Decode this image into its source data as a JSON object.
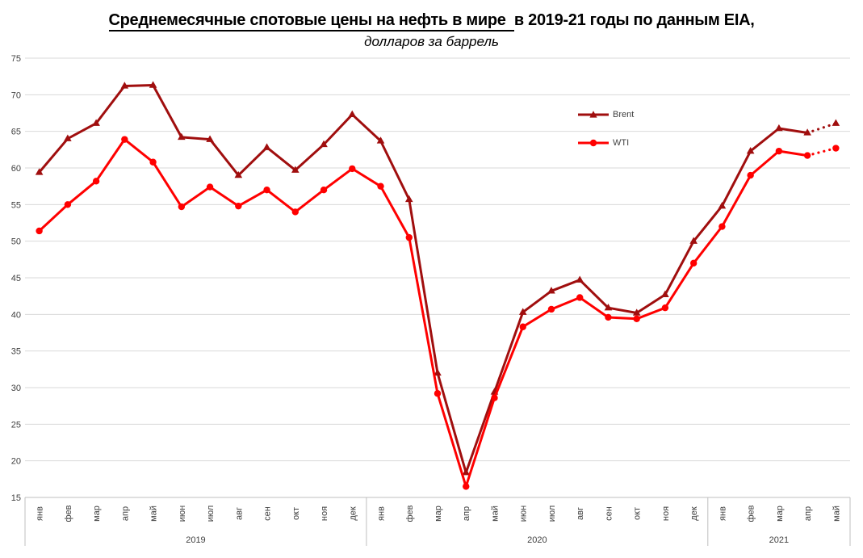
{
  "title": {
    "line1_underlined": "Среднемесячные спотовые цены на нефть в мире ",
    "line1_rest": "в 2019-21 годы по данным EIA,",
    "line2": "долларов за баррель"
  },
  "legend": {
    "items": [
      {
        "label": "Brent",
        "color": "#A00E0E",
        "marker": "triangle"
      },
      {
        "label": "WTI",
        "color": "#FF0000",
        "marker": "circle"
      }
    ]
  },
  "chart_data": {
    "type": "line",
    "title": "Среднемесячные спотовые цены на нефть в мире в 2019-21 годы по данным EIA",
    "subtitle": "долларов за баррель",
    "xlabel": "",
    "ylabel": "",
    "ylim": [
      15,
      75
    ],
    "yticks": [
      15,
      20,
      25,
      30,
      35,
      40,
      45,
      50,
      55,
      60,
      65,
      70,
      75
    ],
    "grid": "horizontal-only",
    "gridline_color": "#D9D9D9",
    "axis_line_color": "#BFBFBF",
    "axis_text_color": "#404040",
    "legend_position": "inside-top-right",
    "month_labels": [
      "янв",
      "фев",
      "мар",
      "апр",
      "май",
      "июн",
      "июл",
      "авг",
      "сен",
      "окт",
      "ноя",
      "дек"
    ],
    "x_groups": [
      {
        "year": "2019",
        "month_count": 12
      },
      {
        "year": "2020",
        "month_count": 12
      },
      {
        "year": "2021",
        "month_count": 5
      }
    ],
    "note": "last segment (апр-май 2021) is dotted forecast",
    "series": [
      {
        "name": "Brent",
        "color": "#A00E0E",
        "marker": "triangle",
        "dotted_last_segment": true,
        "values": [
          59.4,
          64.0,
          66.1,
          71.2,
          71.3,
          64.2,
          63.9,
          59.0,
          62.8,
          59.7,
          63.2,
          67.3,
          63.7,
          55.7,
          32.0,
          18.4,
          29.4,
          40.3,
          43.2,
          44.7,
          40.9,
          40.2,
          42.7,
          50.0,
          54.8,
          62.3,
          65.4,
          64.8,
          66.1
        ]
      },
      {
        "name": "WTI",
        "color": "#FF0000",
        "marker": "circle",
        "dotted_last_segment": true,
        "values": [
          51.4,
          55.0,
          58.2,
          63.9,
          60.8,
          54.7,
          57.4,
          54.8,
          57.0,
          54.0,
          57.0,
          59.9,
          57.5,
          50.5,
          29.2,
          16.5,
          28.6,
          38.3,
          40.7,
          42.3,
          39.6,
          39.4,
          40.9,
          47.0,
          52.0,
          59.0,
          62.3,
          61.7,
          62.7
        ]
      }
    ]
  }
}
